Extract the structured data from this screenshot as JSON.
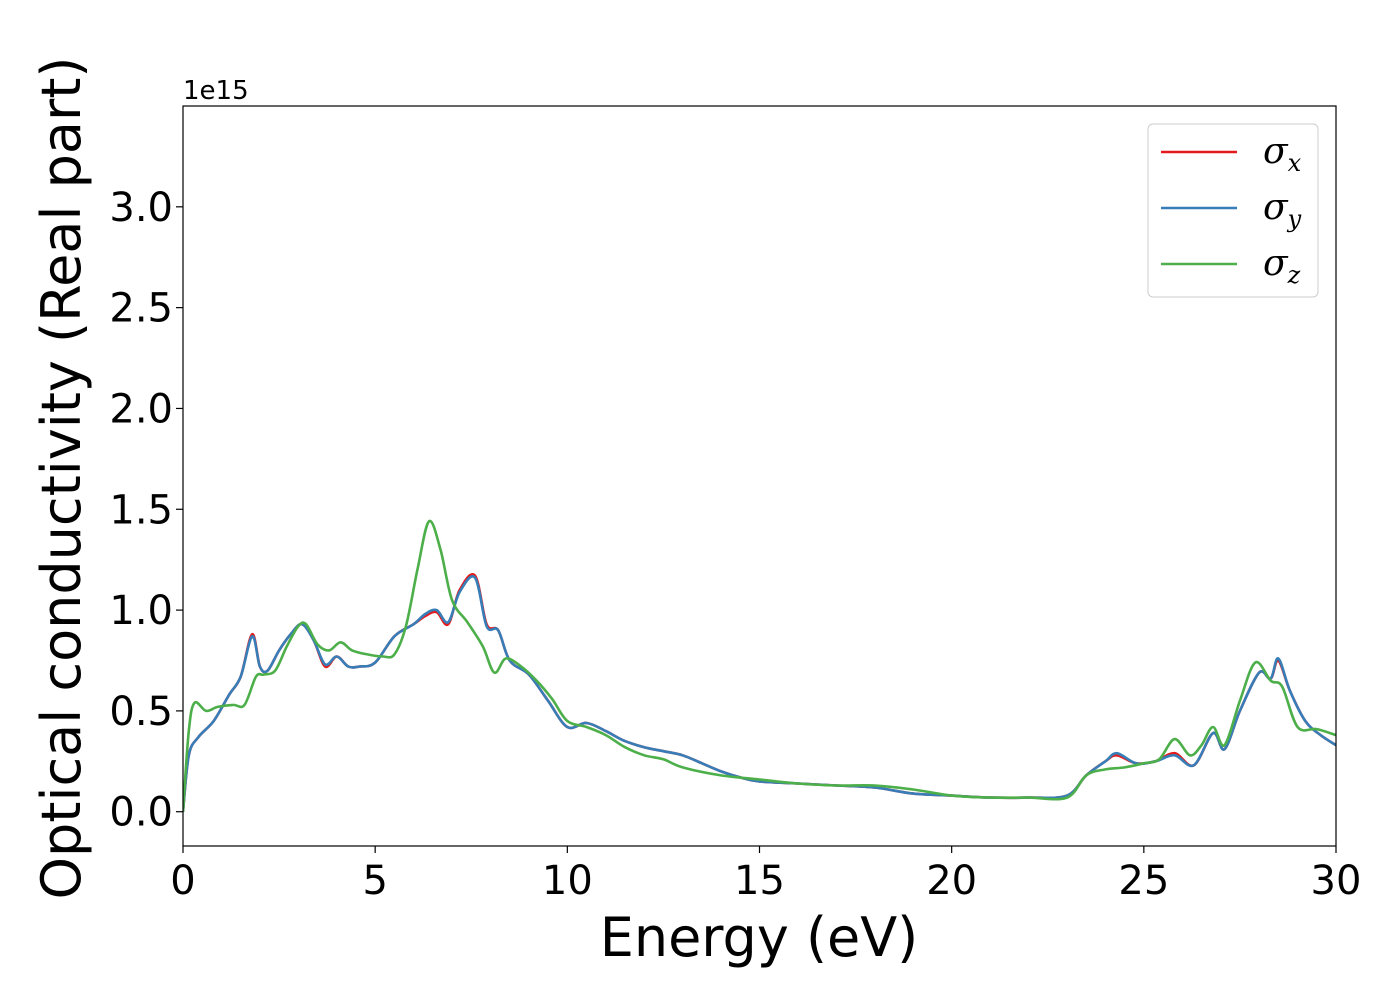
{
  "chart_data": {
    "type": "line",
    "title": "",
    "xlabel": "Energy (eV)",
    "ylabel": "Optical conductivity (Real part)",
    "y_offset_label": "1e15",
    "xlim": [
      0,
      30
    ],
    "ylim": [
      -0.17,
      3.5
    ],
    "x_ticks": [
      0,
      5,
      10,
      15,
      20,
      25,
      30
    ],
    "x_tick_labels": [
      "0",
      "5",
      "10",
      "15",
      "20",
      "25",
      "30"
    ],
    "y_ticks": [
      0.0,
      0.5,
      1.0,
      1.5,
      2.0,
      2.5,
      3.0
    ],
    "y_tick_labels": [
      "0.0",
      "0.5",
      "1.0",
      "1.5",
      "2.0",
      "2.5",
      "3.0"
    ],
    "grid": false,
    "legend_position": "upper right",
    "series": [
      {
        "name": "σx",
        "symbol": "σ",
        "subscript": "x",
        "color": "#e41a1c",
        "x": [
          0,
          0.15,
          0.4,
          0.8,
          1.2,
          1.5,
          1.8,
          2.0,
          2.2,
          2.5,
          2.8,
          3.1,
          3.4,
          3.7,
          4.0,
          4.3,
          4.6,
          5.0,
          5.5,
          6.0,
          6.3,
          6.6,
          6.9,
          7.2,
          7.6,
          7.9,
          8.2,
          8.5,
          9.0,
          9.5,
          10.0,
          10.5,
          11.0,
          11.5,
          12.0,
          12.5,
          13.0,
          13.5,
          14.0,
          14.5,
          15.0,
          16.0,
          17.0,
          18.0,
          19.0,
          20.0,
          21.0,
          22.0,
          23.0,
          23.5,
          24.0,
          24.3,
          24.8,
          25.3,
          25.8,
          26.3,
          26.8,
          27.1,
          27.5,
          28.0,
          28.3,
          28.5,
          28.8,
          29.2,
          29.6,
          30.0
        ],
        "values": [
          0.0,
          0.28,
          0.37,
          0.45,
          0.58,
          0.67,
          0.88,
          0.72,
          0.7,
          0.8,
          0.88,
          0.93,
          0.85,
          0.72,
          0.77,
          0.72,
          0.72,
          0.74,
          0.87,
          0.93,
          0.97,
          0.99,
          0.93,
          1.1,
          1.17,
          0.93,
          0.9,
          0.75,
          0.68,
          0.55,
          0.42,
          0.44,
          0.4,
          0.35,
          0.32,
          0.3,
          0.28,
          0.24,
          0.2,
          0.17,
          0.15,
          0.14,
          0.13,
          0.12,
          0.09,
          0.08,
          0.07,
          0.07,
          0.08,
          0.18,
          0.25,
          0.28,
          0.24,
          0.25,
          0.29,
          0.23,
          0.39,
          0.31,
          0.5,
          0.69,
          0.66,
          0.75,
          0.6,
          0.45,
          0.38,
          0.33
        ]
      },
      {
        "name": "σy",
        "symbol": "σ",
        "subscript": "y",
        "color": "#377eb8",
        "x": [
          0,
          0.15,
          0.4,
          0.8,
          1.2,
          1.5,
          1.8,
          2.0,
          2.2,
          2.5,
          2.8,
          3.1,
          3.4,
          3.7,
          4.0,
          4.3,
          4.6,
          5.0,
          5.5,
          6.0,
          6.3,
          6.6,
          6.9,
          7.2,
          7.6,
          7.9,
          8.2,
          8.5,
          9.0,
          9.5,
          10.0,
          10.5,
          11.0,
          11.5,
          12.0,
          12.5,
          13.0,
          13.5,
          14.0,
          14.5,
          15.0,
          16.0,
          17.0,
          18.0,
          19.0,
          20.0,
          21.0,
          22.0,
          23.0,
          23.5,
          24.0,
          24.3,
          24.8,
          25.3,
          25.8,
          26.3,
          26.8,
          27.1,
          27.5,
          28.0,
          28.3,
          28.5,
          28.8,
          29.2,
          29.6,
          30.0
        ],
        "values": [
          0.0,
          0.28,
          0.37,
          0.45,
          0.58,
          0.67,
          0.87,
          0.72,
          0.7,
          0.8,
          0.88,
          0.93,
          0.85,
          0.73,
          0.77,
          0.72,
          0.72,
          0.74,
          0.87,
          0.93,
          0.98,
          1.0,
          0.94,
          1.09,
          1.16,
          0.92,
          0.9,
          0.75,
          0.68,
          0.55,
          0.42,
          0.44,
          0.4,
          0.35,
          0.32,
          0.3,
          0.28,
          0.24,
          0.2,
          0.17,
          0.15,
          0.14,
          0.13,
          0.12,
          0.09,
          0.08,
          0.07,
          0.07,
          0.08,
          0.18,
          0.25,
          0.29,
          0.24,
          0.25,
          0.28,
          0.23,
          0.39,
          0.31,
          0.5,
          0.69,
          0.66,
          0.76,
          0.6,
          0.45,
          0.38,
          0.33
        ]
      },
      {
        "name": "σz",
        "symbol": "σ",
        "subscript": "z",
        "color": "#4daf4a",
        "x": [
          0,
          0.15,
          0.3,
          0.6,
          0.9,
          1.3,
          1.6,
          1.9,
          2.1,
          2.4,
          2.7,
          3.0,
          3.2,
          3.5,
          3.8,
          4.1,
          4.4,
          4.8,
          5.2,
          5.5,
          5.8,
          6.1,
          6.4,
          6.7,
          7.0,
          7.4,
          7.8,
          8.1,
          8.4,
          8.8,
          9.2,
          9.6,
          10.0,
          10.5,
          11.0,
          11.5,
          12.0,
          12.5,
          13.0,
          14.0,
          15.0,
          16.0,
          17.0,
          18.0,
          19.0,
          20.0,
          21.0,
          22.0,
          23.0,
          23.5,
          24.0,
          24.5,
          25.0,
          25.4,
          25.8,
          26.2,
          26.5,
          26.8,
          27.1,
          27.5,
          27.9,
          28.3,
          28.6,
          29.0,
          29.5,
          30.0
        ],
        "values": [
          0.0,
          0.4,
          0.54,
          0.5,
          0.52,
          0.53,
          0.53,
          0.67,
          0.68,
          0.7,
          0.82,
          0.92,
          0.93,
          0.83,
          0.8,
          0.84,
          0.8,
          0.78,
          0.77,
          0.78,
          0.92,
          1.2,
          1.44,
          1.3,
          1.05,
          0.94,
          0.82,
          0.69,
          0.76,
          0.72,
          0.65,
          0.56,
          0.45,
          0.42,
          0.38,
          0.32,
          0.28,
          0.26,
          0.22,
          0.18,
          0.16,
          0.14,
          0.13,
          0.13,
          0.11,
          0.08,
          0.07,
          0.07,
          0.07,
          0.18,
          0.21,
          0.22,
          0.24,
          0.26,
          0.36,
          0.28,
          0.33,
          0.42,
          0.33,
          0.55,
          0.74,
          0.65,
          0.62,
          0.42,
          0.41,
          0.38
        ]
      }
    ]
  }
}
